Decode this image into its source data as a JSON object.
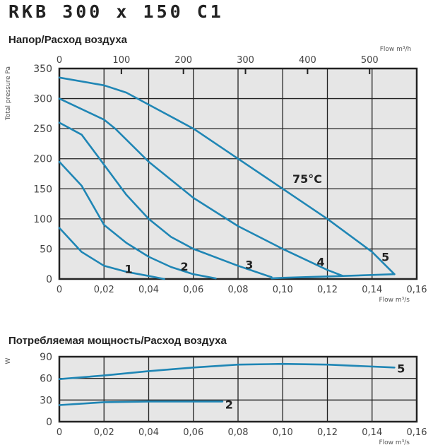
{
  "title": "RKB 300 x 150 C1",
  "colors": {
    "curve": "#1f86b5",
    "plot_bg": "#e6e6e6",
    "grid": "#222222"
  },
  "chart_data": [
    {
      "type": "line",
      "title": "Напор/Расход воздуха",
      "xlabel": "Flow m³/s",
      "x2label": "Flow m³/h",
      "ylabel": "Total pressure Pa",
      "xlim": [
        0,
        0.16
      ],
      "ylim": [
        0,
        350
      ],
      "x2lim": [
        0,
        576
      ],
      "xticks": [
        "0",
        "0,02",
        "0,04",
        "0,06",
        "0,08",
        "0,10",
        "0,12",
        "0,14",
        "0,16"
      ],
      "x2ticks": [
        "0",
        "100",
        "200",
        "300",
        "400",
        "500"
      ],
      "yticks": [
        "0",
        "50",
        "100",
        "150",
        "200",
        "250",
        "300",
        "350"
      ],
      "grid": true,
      "annotation": {
        "text": "75°C",
        "x": 0.111,
        "y": 160
      },
      "series": [
        {
          "name": "1",
          "label_at": [
            0.031,
            10
          ],
          "points": [
            [
              0,
              85
            ],
            [
              0.01,
              45
            ],
            [
              0.02,
              22
            ],
            [
              0.03,
              12
            ],
            [
              0.04,
              5
            ],
            [
              0.047,
              0
            ]
          ]
        },
        {
          "name": "2",
          "label_at": [
            0.056,
            14
          ],
          "points": [
            [
              0,
              195
            ],
            [
              0.01,
              155
            ],
            [
              0.02,
              90
            ],
            [
              0.03,
              60
            ],
            [
              0.04,
              37
            ],
            [
              0.05,
              20
            ],
            [
              0.06,
              8
            ],
            [
              0.07,
              1
            ]
          ]
        },
        {
          "name": "3",
          "label_at": [
            0.085,
            17
          ],
          "points": [
            [
              0,
              260
            ],
            [
              0.01,
              240
            ],
            [
              0.02,
              190
            ],
            [
              0.03,
              140
            ],
            [
              0.04,
              100
            ],
            [
              0.05,
              70
            ],
            [
              0.06,
              50
            ],
            [
              0.08,
              22
            ],
            [
              0.095,
              3
            ]
          ]
        },
        {
          "name": "4",
          "label_at": [
            0.117,
            22
          ],
          "points": [
            [
              0,
              300
            ],
            [
              0.02,
              265
            ],
            [
              0.025,
              250
            ],
            [
              0.04,
              195
            ],
            [
              0.06,
              135
            ],
            [
              0.08,
              88
            ],
            [
              0.1,
              50
            ],
            [
              0.12,
              15
            ],
            [
              0.127,
              5
            ]
          ]
        },
        {
          "name": "5",
          "label_at": [
            0.146,
            30
          ],
          "points": [
            [
              0,
              335
            ],
            [
              0.02,
              322
            ],
            [
              0.03,
              310
            ],
            [
              0.04,
              290
            ],
            [
              0.06,
              250
            ],
            [
              0.08,
              200
            ],
            [
              0.1,
              150
            ],
            [
              0.12,
              100
            ],
            [
              0.14,
              45
            ],
            [
              0.15,
              8
            ]
          ]
        },
        {
          "points": [
            [
              0.095,
              1
            ],
            [
              0.1,
              2
            ],
            [
              0.127,
              5
            ],
            [
              0.15,
              8
            ]
          ]
        }
      ]
    },
    {
      "type": "line",
      "title": "Потребляемая мощность/Расход воздуха",
      "xlabel": "Flow m³/s",
      "ylabel": "W",
      "xlim": [
        0,
        0.16
      ],
      "ylim": [
        0,
        90
      ],
      "xticks": [
        "0",
        "0,02",
        "0,04",
        "0,06",
        "0,08",
        "0,10",
        "0,12",
        "0,14",
        "0,16"
      ],
      "yticks": [
        "0",
        "30",
        "60",
        "90"
      ],
      "grid": true,
      "series": [
        {
          "name": "5",
          "label_at": [
            0.153,
            68
          ],
          "points": [
            [
              0,
              59
            ],
            [
              0.02,
              64
            ],
            [
              0.04,
              70
            ],
            [
              0.06,
              75
            ],
            [
              0.08,
              79
            ],
            [
              0.1,
              80
            ],
            [
              0.12,
              79
            ],
            [
              0.15,
              75
            ]
          ]
        },
        {
          "name": "2",
          "label_at": [
            0.076,
            18
          ],
          "points": [
            [
              0,
              23
            ],
            [
              0.02,
              27
            ],
            [
              0.04,
              28
            ],
            [
              0.06,
              28
            ],
            [
              0.073,
              28
            ]
          ]
        }
      ]
    }
  ]
}
